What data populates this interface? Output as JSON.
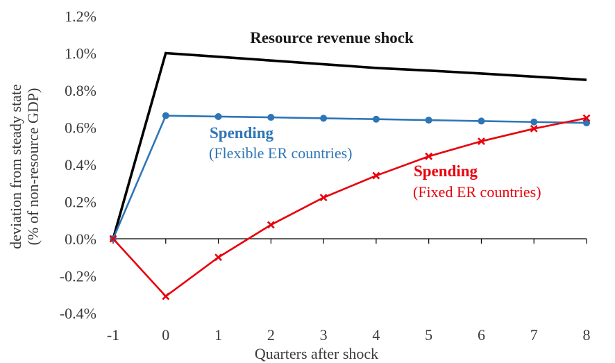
{
  "chart_data": {
    "type": "line",
    "x": [
      -1,
      0,
      1,
      2,
      3,
      4,
      5,
      6,
      7,
      8
    ],
    "xlabel": "Quarters after shock",
    "ylabel_lines": [
      "deviation from steady state",
      "(% of non-resource GDP)"
    ],
    "ylim": [
      -0.4,
      1.2
    ],
    "yticks": [
      -0.4,
      -0.2,
      0.0,
      0.2,
      0.4,
      0.6,
      0.8,
      1.0,
      1.2
    ],
    "ytick_labels": [
      "-0.4%",
      "-0.2%",
      "0.0%",
      "0.2%",
      "0.4%",
      "0.6%",
      "0.8%",
      "1.0%",
      "1.2%"
    ],
    "xtick_labels": [
      "-1",
      "0",
      "1",
      "2",
      "3",
      "4",
      "5",
      "6",
      "7",
      "8"
    ],
    "grid": false,
    "series": [
      {
        "name": "Resource revenue shock",
        "color": "#000000",
        "marker": "none",
        "values": [
          0.0,
          1.0,
          0.98,
          0.96,
          0.94,
          0.92,
          0.906,
          0.89,
          0.873,
          0.856
        ]
      },
      {
        "name": "Spending (Flexible ER countries)",
        "color": "#2e75b6",
        "marker": "circle",
        "values": [
          0.0,
          0.663,
          0.658,
          0.654,
          0.649,
          0.644,
          0.639,
          0.634,
          0.629,
          0.624
        ]
      },
      {
        "name": "Spending (Fixed ER countries)",
        "color": "#e8000b",
        "marker": "x",
        "values": [
          0.0,
          -0.31,
          -0.1,
          0.075,
          0.222,
          0.34,
          0.444,
          0.525,
          0.593,
          0.65
        ]
      }
    ],
    "annotations": [
      {
        "text": "Resource revenue shock",
        "color": "#1a1a1a",
        "weight": "bold"
      },
      {
        "text": "Spending",
        "color": "#2e75b6",
        "weight": "bold"
      },
      {
        "text": "(Flexible ER countries)",
        "color": "#2e75b6",
        "weight": "normal"
      },
      {
        "text": "Spending",
        "color": "#e8000b",
        "weight": "bold"
      },
      {
        "text": "(Fixed ER countries)",
        "color": "#e8000b",
        "weight": "normal"
      }
    ]
  }
}
